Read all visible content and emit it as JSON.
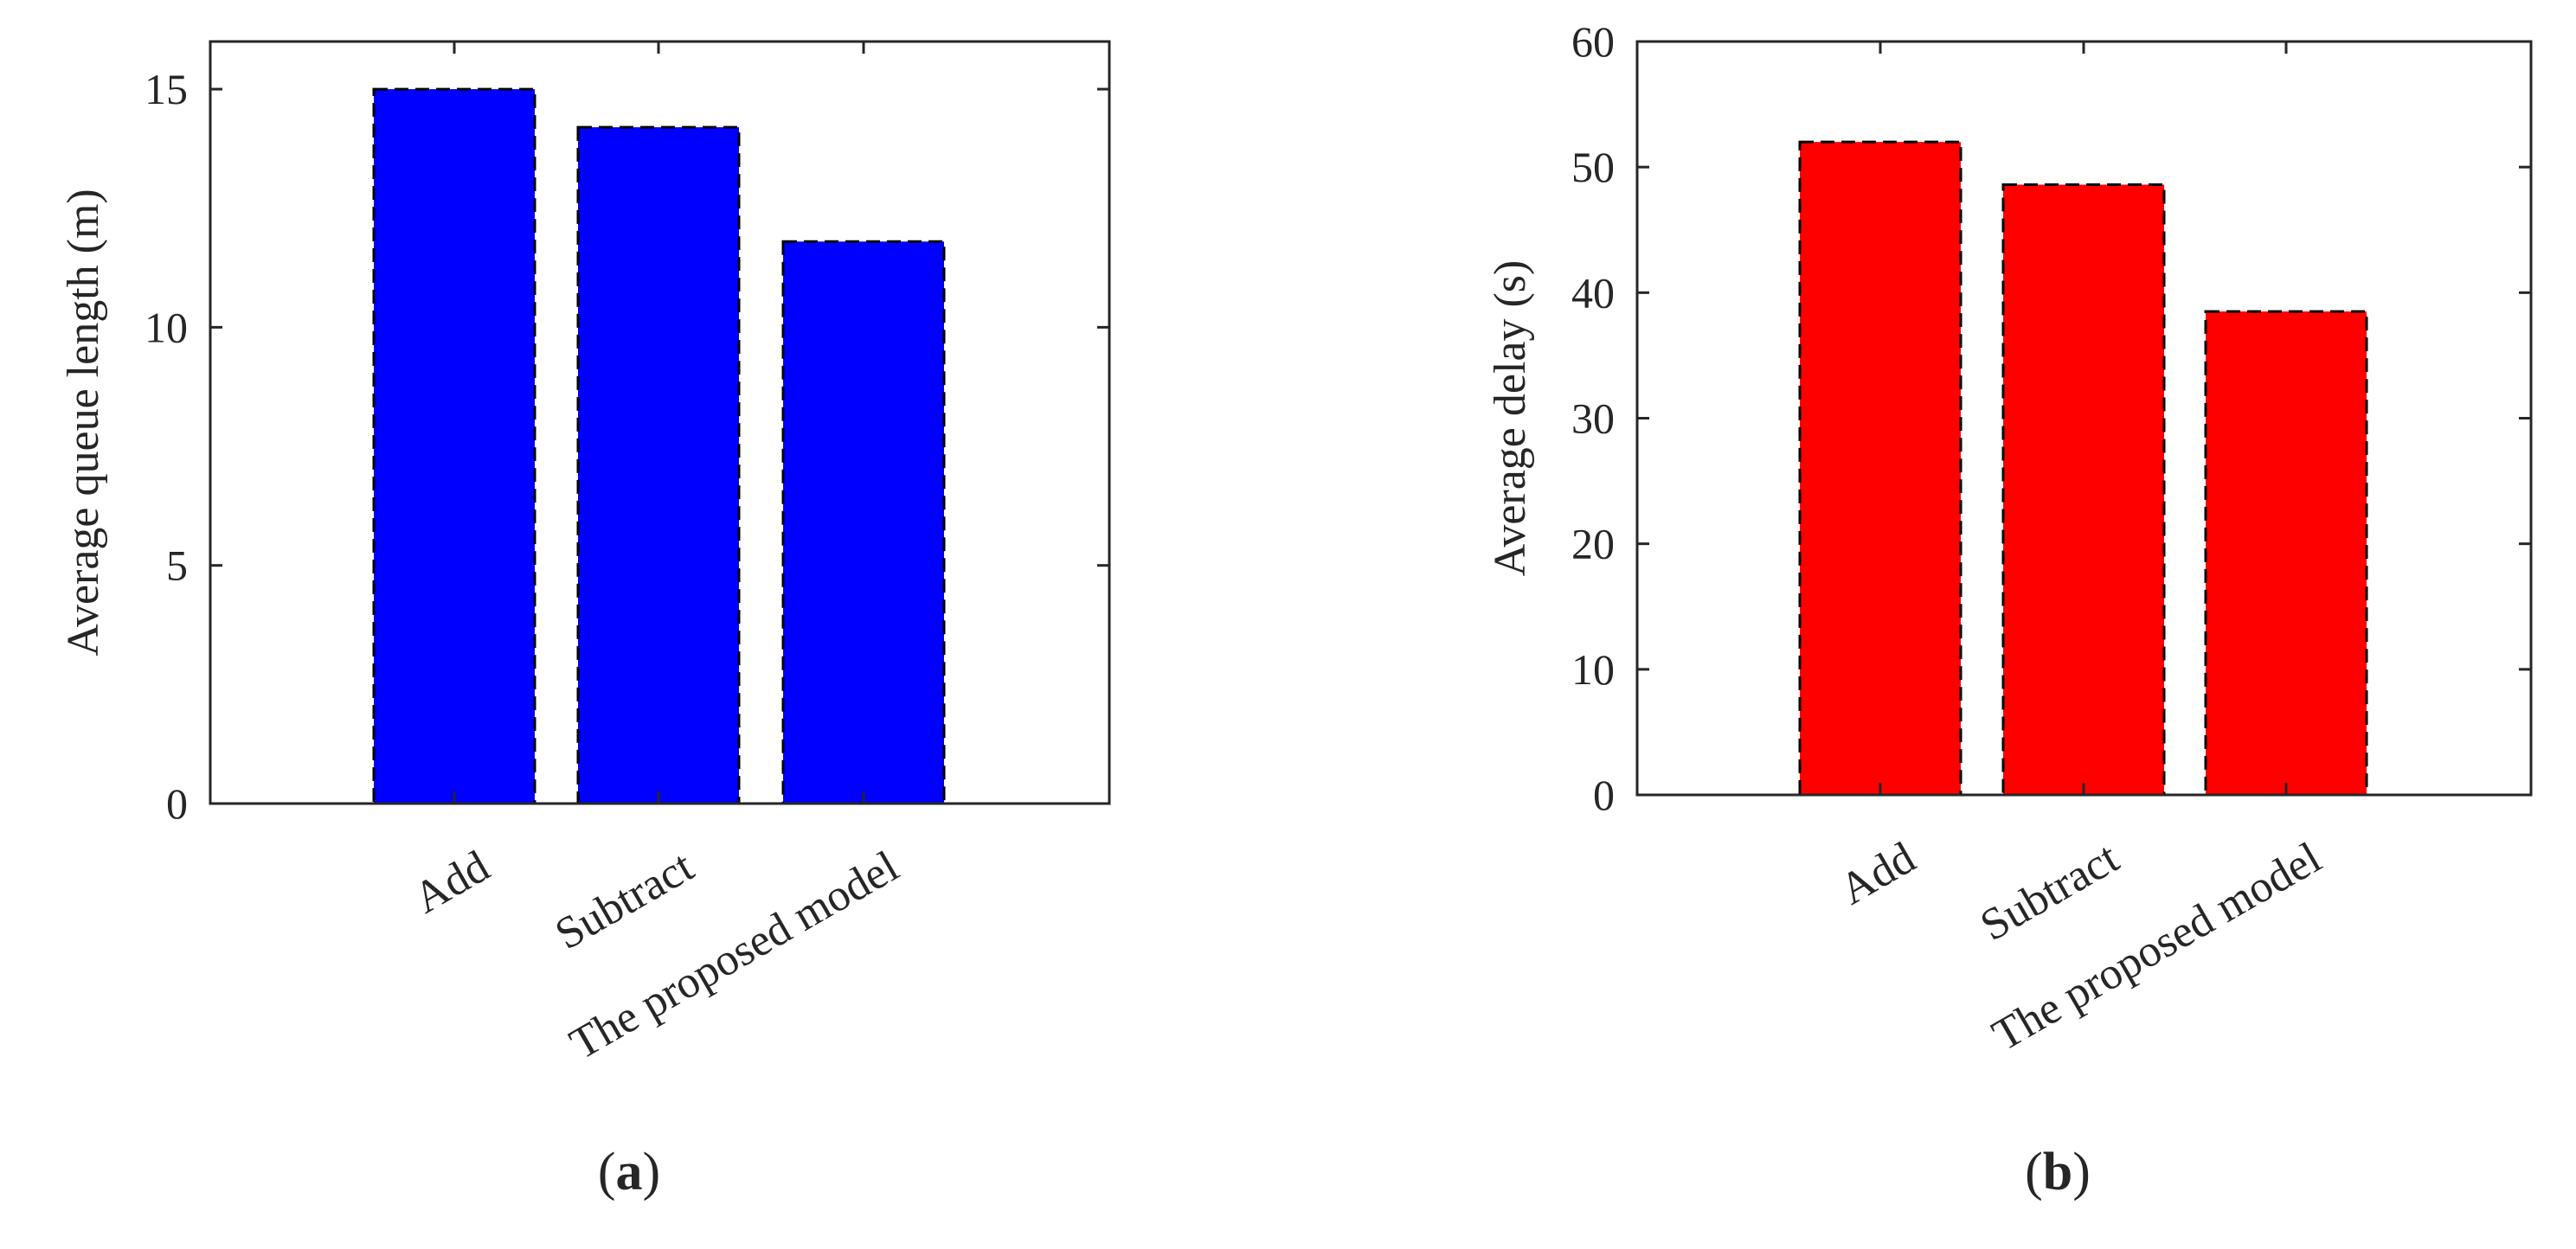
{
  "chart_data": [
    {
      "type": "bar",
      "panel_label": "a",
      "categories": [
        "Add",
        "Subtract",
        "The proposed model"
      ],
      "values": [
        15.0,
        14.2,
        11.8
      ],
      "ylabel": "Average queue length (m)",
      "xlabel": "",
      "ylim": [
        0,
        16
      ],
      "yticks": [
        0,
        5,
        10,
        15
      ],
      "bar_color": "#0000ff",
      "bar_edge": "dashed black",
      "grid": false
    },
    {
      "type": "bar",
      "panel_label": "b",
      "categories": [
        "Add",
        "Subtract",
        "The proposed model"
      ],
      "values": [
        52.0,
        48.6,
        38.5
      ],
      "ylabel": "Average delay (s)",
      "xlabel": "",
      "ylim": [
        0,
        60
      ],
      "yticks": [
        0,
        10,
        20,
        30,
        40,
        50,
        60
      ],
      "bar_color": "#ff0000",
      "bar_edge": "dashed black",
      "grid": false
    }
  ]
}
